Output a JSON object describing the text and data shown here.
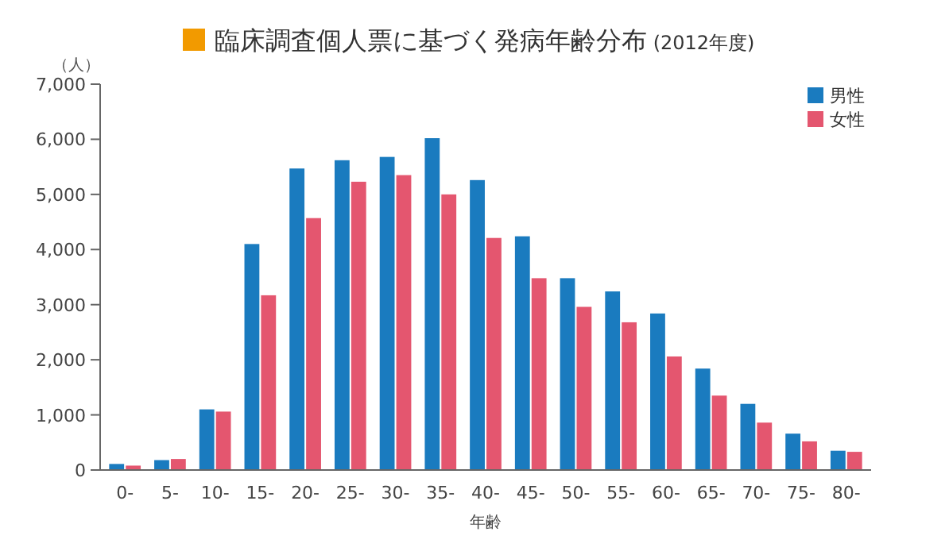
{
  "chart_data": {
    "type": "bar",
    "title": "臨床調査個人票に基づく発病年齢分布 (2012年度)",
    "ylabel": "（人）",
    "xlabel": "年齢",
    "categories": [
      "0-",
      "5-",
      "10-",
      "15-",
      "20-",
      "25-",
      "30-",
      "35-",
      "40-",
      "45-",
      "50-",
      "55-",
      "60-",
      "65-",
      "70-",
      "75-",
      "80-"
    ],
    "series": [
      {
        "name": "男性",
        "color": "#1a7bbf",
        "values": [
          110,
          180,
          1100,
          4100,
          5470,
          5620,
          5680,
          6020,
          5260,
          4240,
          3480,
          3240,
          2840,
          1840,
          1200,
          660,
          350
        ]
      },
      {
        "name": "女性",
        "color": "#e4566f",
        "values": [
          80,
          200,
          1060,
          3170,
          4570,
          5230,
          5350,
          5000,
          4210,
          3480,
          2960,
          2680,
          2060,
          1350,
          860,
          520,
          330
        ]
      }
    ],
    "ylim": [
      0,
      7000
    ],
    "yticks": [
      {
        "value": 0,
        "label": "0"
      },
      {
        "value": 1000,
        "label": "1,000"
      },
      {
        "value": 2000,
        "label": "2,000"
      },
      {
        "value": 3000,
        "label": "3,000"
      },
      {
        "value": 4000,
        "label": "4,000"
      },
      {
        "value": 5000,
        "label": "5,000"
      },
      {
        "value": 6000,
        "label": "6,000"
      },
      {
        "value": 7000,
        "label": "7,000"
      }
    ],
    "legend": "top right"
  }
}
